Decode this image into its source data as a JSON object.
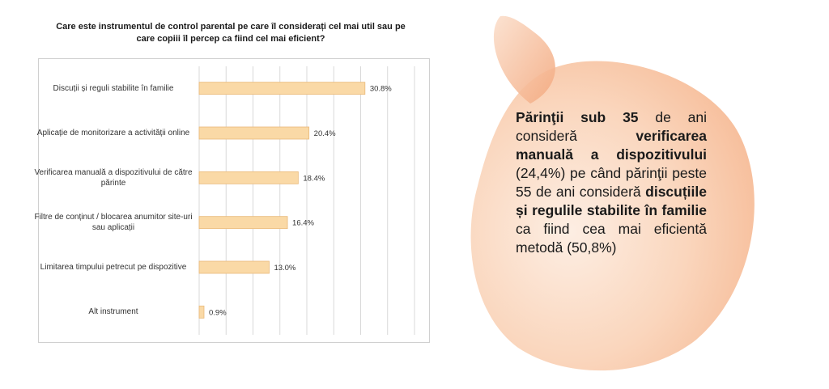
{
  "chart_data": {
    "type": "bar",
    "orientation": "horizontal",
    "title": "Care este instrumentul de control parental pe care îl considerați cel mai util sau pe care copiii îl percep ca fiind cel mai eficient?",
    "categories": [
      "Discuții și reguli stabilite în familie",
      "Aplicație de monitorizare a activității online",
      "Verificarea manuală a dispozitivului de către părinte",
      "Filtre de conținut / blocarea anumitor site-uri sau aplicații",
      "Limitarea timpului petrecut pe dispozitive",
      "Alt instrument"
    ],
    "values": [
      30.8,
      20.4,
      18.4,
      16.4,
      13.0,
      0.9
    ],
    "data_labels": [
      "30.8%",
      "20.4%",
      "18.4%",
      "16.4%",
      "13.0%",
      "0.9%"
    ],
    "xlim": [
      0,
      40
    ],
    "bar_color": "#FAD9A6",
    "bar_edge": "#E9B97A",
    "grid": true
  },
  "callout": {
    "parts": [
      {
        "text": "Părinţii sub 35",
        "bold": true
      },
      {
        "text": " de ani consideră ",
        "bold": false
      },
      {
        "text": "verificarea manuală a dispozitivului",
        "bold": true
      },
      {
        "text": " (24,4%) pe când părinţii peste 55 de ani consideră ",
        "bold": false
      },
      {
        "text": "discuțiile și regulile stabilite în familie",
        "bold": true
      },
      {
        "text": " ca fiind cea mai eficientă metodă (50,8%)",
        "bold": false
      }
    ],
    "blob_color_light": "#FBE4D2",
    "blob_color_dark": "#F6B994"
  }
}
